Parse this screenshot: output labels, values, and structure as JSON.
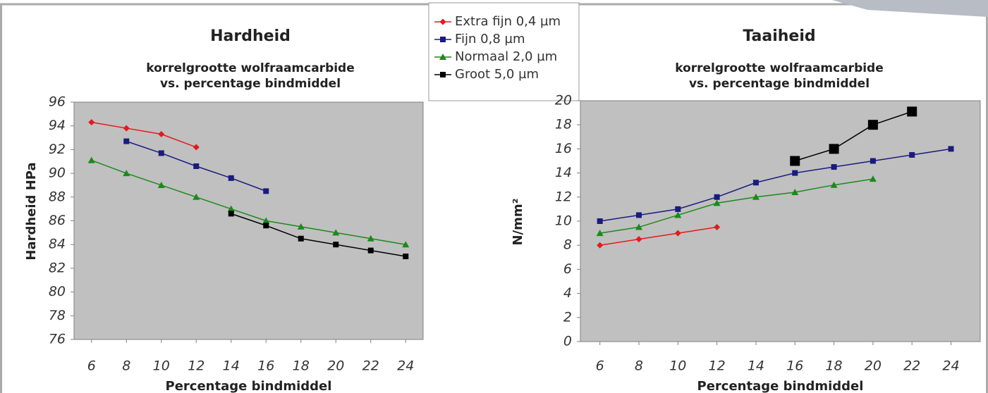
{
  "chart_data": [
    {
      "type": "line",
      "title": "Hardheid",
      "subtitle": [
        "korrelgrootte wolfraamcarbide",
        "vs. percentage bindmiddel"
      ],
      "x_label": "Percentage bindmiddel",
      "y_label": "Hardheid HPa",
      "xlim": [
        5,
        25
      ],
      "xticks": [
        6,
        8,
        10,
        12,
        14,
        16,
        18,
        20,
        22,
        24
      ],
      "ylim": [
        76,
        96
      ],
      "yticks": [
        76,
        78,
        80,
        82,
        84,
        86,
        88,
        90,
        92,
        94,
        96
      ],
      "series": [
        {
          "name": "Extra fijn 0,4 µm",
          "color": "#e41a1c",
          "marker": "diamond",
          "x": [
            6,
            8,
            10,
            12
          ],
          "values": [
            94.3,
            93.8,
            93.3,
            92.2
          ]
        },
        {
          "name": "Fijn 0,8 µm",
          "color": "#1a1a80",
          "marker": "square",
          "x": [
            8,
            10,
            12,
            14,
            16
          ],
          "values": [
            92.7,
            91.7,
            90.6,
            89.6,
            88.5
          ]
        },
        {
          "name": "Normaal 2,0 µm",
          "color": "#1a8a1a",
          "marker": "triangle",
          "x": [
            6,
            8,
            10,
            12,
            14,
            16,
            18,
            20,
            22,
            24
          ],
          "values": [
            91.1,
            90.0,
            89.0,
            88.0,
            87.0,
            86.0,
            85.5,
            85.0,
            84.5,
            84.0
          ]
        },
        {
          "name": "Groot 5,0 µm",
          "color": "#000000",
          "marker": "square",
          "x": [
            14,
            16,
            18,
            20,
            22,
            24
          ],
          "values": [
            86.6,
            85.6,
            84.5,
            84.0,
            83.5,
            83.0
          ]
        }
      ]
    },
    {
      "type": "line",
      "title": "Taaiheid",
      "subtitle": [
        "korrelgrootte wolfraamcarbide",
        "vs. percentage bindmiddel"
      ],
      "x_label": "Percentage bindmiddel",
      "y_label": "N/mm²",
      "xlim": [
        5,
        25.5
      ],
      "xticks": [
        6,
        8,
        10,
        12,
        14,
        16,
        18,
        20,
        22,
        24
      ],
      "ylim": [
        0,
        20
      ],
      "yticks": [
        0,
        2,
        4,
        6,
        8,
        10,
        12,
        14,
        16,
        18,
        20
      ],
      "series": [
        {
          "color": "#e41a1c",
          "marker": "diamond",
          "x": [
            6,
            8,
            10,
            12
          ],
          "values": [
            8,
            8.5,
            9,
            9.5
          ]
        },
        {
          "color": "#1a1a80",
          "marker": "square",
          "x": [
            6,
            8,
            10,
            12,
            14,
            16,
            18,
            20,
            22,
            24
          ],
          "values": [
            10,
            10.5,
            11,
            12,
            13.2,
            14,
            14.5,
            15,
            15.5,
            16
          ]
        },
        {
          "color": "#1a8a1a",
          "marker": "triangle",
          "x": [
            6,
            8,
            10,
            12,
            14,
            16,
            18,
            20
          ],
          "values": [
            9,
            9.5,
            10.5,
            11.5,
            12,
            12.4,
            13,
            13.5
          ]
        },
        {
          "color": "#000000",
          "marker": "bigsquare",
          "x": [
            16,
            18,
            20,
            22
          ],
          "values": [
            15,
            16,
            18,
            19.1
          ]
        }
      ]
    }
  ]
}
